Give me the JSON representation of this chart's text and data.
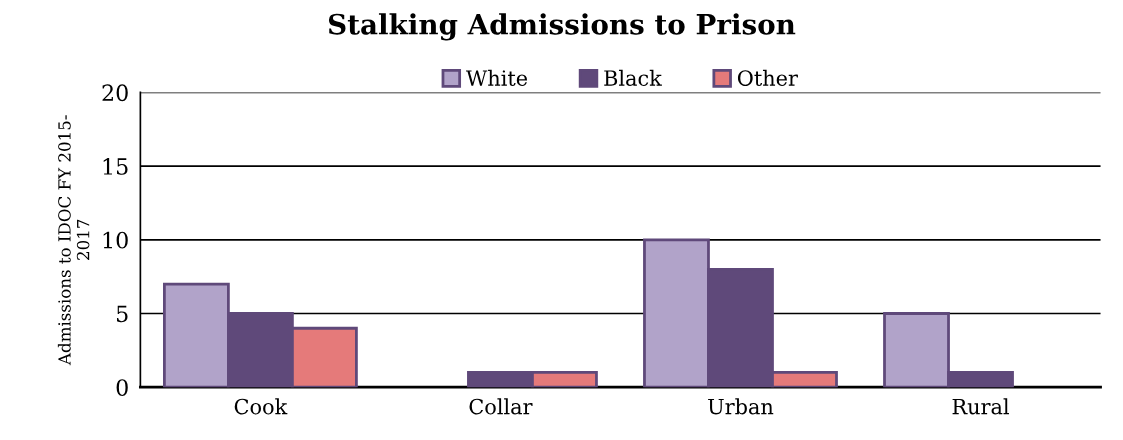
{
  "chart_data": {
    "type": "bar",
    "title": "Stalking Admissions to Prison",
    "ylabel": "Admissions to IDOC FY 2015-\n2017",
    "categories": [
      "Cook",
      "Collar",
      "Urban",
      "Rural"
    ],
    "series": [
      {
        "name": "White",
        "color": "#b1a3c9",
        "values": [
          7,
          0,
          10,
          5
        ]
      },
      {
        "name": "Black",
        "color": "#5f497a",
        "values": [
          5,
          1,
          8,
          1
        ]
      },
      {
        "name": "Other",
        "color": "#e57a7a",
        "values": [
          4,
          1,
          1,
          0
        ]
      }
    ],
    "ylim": [
      0,
      20
    ],
    "yticks": [
      0,
      5,
      10,
      15,
      20
    ],
    "grid": "y",
    "legend": "top"
  }
}
